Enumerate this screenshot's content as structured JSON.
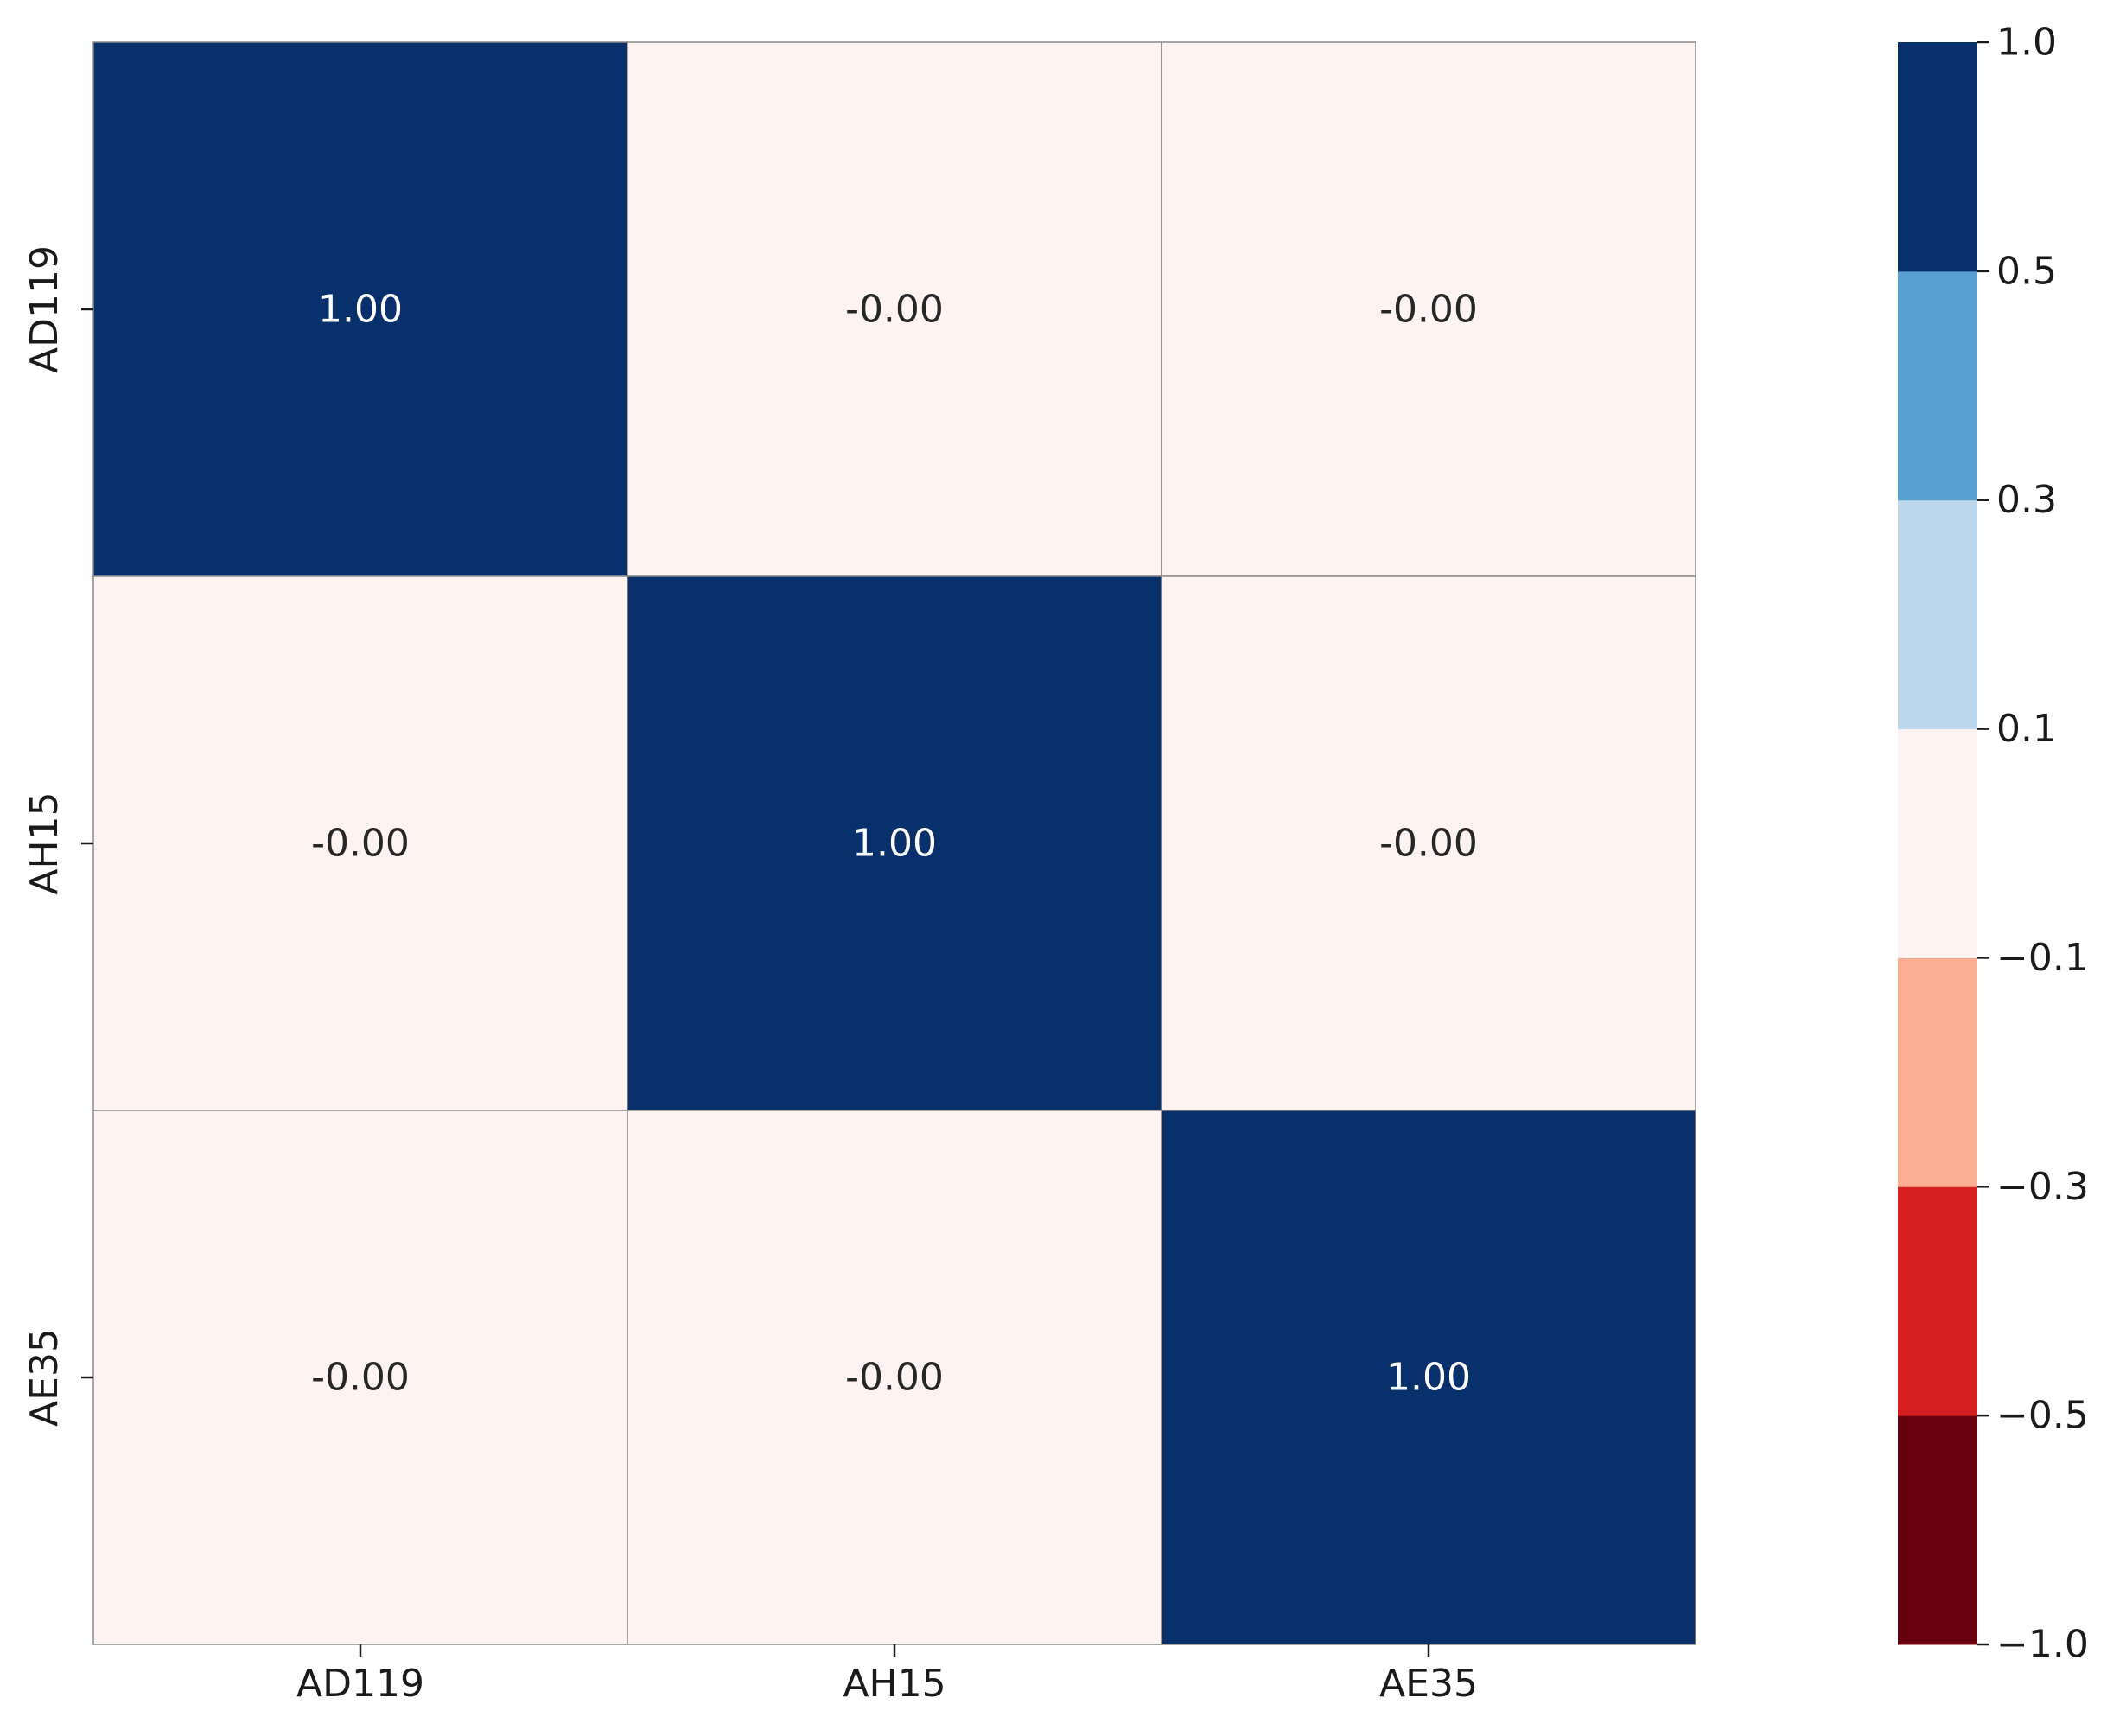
{
  "chart_data": {
    "type": "heatmap",
    "title": "",
    "xlabel": "",
    "ylabel": "",
    "x_categories": [
      "AD119",
      "AH15",
      "AE35"
    ],
    "y_categories": [
      "AD119",
      "AH15",
      "AE35"
    ],
    "values": [
      [
        1.0,
        -0.0,
        -0.0
      ],
      [
        -0.0,
        1.0,
        -0.0
      ],
      [
        -0.0,
        -0.0,
        1.0
      ]
    ],
    "cell_labels": [
      [
        "1.00",
        "-0.00",
        "-0.00"
      ],
      [
        "-0.00",
        "1.00",
        "-0.00"
      ],
      [
        "-0.00",
        "-0.00",
        "1.00"
      ]
    ],
    "colorbar": {
      "range": [
        -1.0,
        1.0
      ],
      "boundaries": [
        -1.0,
        -0.5,
        -0.3,
        -0.1,
        0.1,
        0.3,
        0.5,
        1.0
      ],
      "tick_labels": [
        "−1.0",
        "−0.5",
        "−0.3",
        "−0.1",
        "0.1",
        "0.3",
        "0.5",
        "1.0"
      ],
      "colors": [
        "#67000d",
        "#d42020",
        "#fcae94",
        "#fdf4f1",
        "#bcd7ec",
        "#57a0cf",
        "#08306b"
      ]
    },
    "grid": true,
    "legend": "colorbar-right"
  }
}
